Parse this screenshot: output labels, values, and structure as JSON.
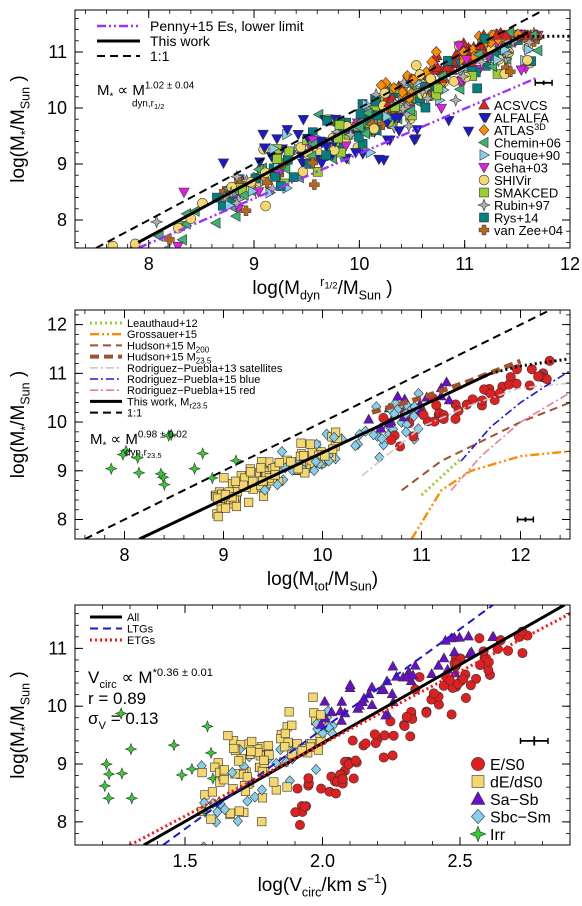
{
  "chart_data": [
    {
      "type": "scatter",
      "xlabel": "log(M_dyn^{r1/2}/M_Sun)",
      "ylabel": "log(M*/M_Sun)",
      "xlim": [
        7.3,
        12.0
      ],
      "ylim": [
        7.5,
        11.75
      ],
      "xticks": [
        "8",
        "9",
        "10",
        "11",
        "12"
      ],
      "yticks": [
        "8",
        "9",
        "10",
        "11"
      ],
      "legend_position": "top-left",
      "lines": [
        {
          "name": "Penny+15 Es, lower limit",
          "style": "dash-dot-dot",
          "color": "#9b30ff",
          "x": [
            7.9,
            11.7
          ],
          "y": [
            7.5,
            10.55
          ]
        },
        {
          "name": "This work",
          "style": "solid",
          "color": "#000000",
          "x": [
            7.9,
            11.6
          ],
          "y": [
            7.6,
            11.35
          ]
        },
        {
          "name": "1:1",
          "style": "dashed",
          "color": "#000000",
          "x": [
            7.5,
            11.75
          ],
          "y": [
            7.5,
            11.75
          ]
        },
        {
          "name": "",
          "style": "dotted",
          "color": "#000000",
          "x": [
            11.5,
            12.0
          ],
          "y": [
            11.28,
            11.28
          ]
        }
      ],
      "annotation": "M* ∝ M_dyn,r1/2^{1.02 ± 0.04}",
      "legend_symbols": [
        {
          "name": "ACSVCS",
          "shape": "triangle-up",
          "color": "#e02020"
        },
        {
          "name": "ALFALFA",
          "shape": "triangle-down",
          "color": "#1a1acc"
        },
        {
          "name": "ATLAS3D",
          "shape": "diamond",
          "color": "#ff8c00"
        },
        {
          "name": "Chemin+06",
          "shape": "triangle-left",
          "color": "#3cb371"
        },
        {
          "name": "Fouque+90",
          "shape": "triangle-right",
          "color": "#87ceeb"
        },
        {
          "name": "Geha+03",
          "shape": "triangle-down",
          "color": "#e020e0"
        },
        {
          "name": "SHIVir",
          "shape": "circle",
          "color": "#f5d76e"
        },
        {
          "name": "SMAKCED",
          "shape": "square",
          "color": "#9acd32"
        },
        {
          "name": "Rubin+97",
          "shape": "star4",
          "color": "#b0b0b0"
        },
        {
          "name": "Rys+14",
          "shape": "square",
          "color": "#008080"
        },
        {
          "name": "van Zee+04",
          "shape": "plus",
          "color": "#b5651d"
        }
      ],
      "error_bar": {
        "x": 11.75,
        "y": 10.45,
        "xerr": 0.08,
        "yerr": 0.04
      }
    },
    {
      "type": "scatter",
      "xlabel": "log(M_tot/M_Sun)",
      "ylabel": "log(M*/M_Sun)",
      "xlim": [
        7.5,
        12.5
      ],
      "ylim": [
        7.6,
        12.3
      ],
      "xticks": [
        "8",
        "9",
        "10",
        "11",
        "12"
      ],
      "yticks": [
        "8",
        "9",
        "10",
        "11",
        "12"
      ],
      "legend_position": "top-left",
      "lines": [
        {
          "name": "Leauthaud+12",
          "style": "dotted",
          "color": "#9acd32",
          "x": [
            11.0,
            11.4
          ],
          "y": [
            8.5,
            9.25
          ]
        },
        {
          "name": "Grossauer+15",
          "style": "dash-dot-dot",
          "color": "#ff8c00",
          "x": [
            10.9,
            11.2,
            11.5,
            12.0,
            12.5
          ],
          "y": [
            7.6,
            8.6,
            9.0,
            9.3,
            9.4
          ]
        },
        {
          "name": "Hudson+15 M200",
          "style": "dashed",
          "color": "#a0522d",
          "x": [
            10.8,
            11.2,
            11.6,
            12.0,
            12.5
          ],
          "y": [
            8.6,
            9.2,
            9.6,
            10.0,
            10.4
          ]
        },
        {
          "name": "Hudson+15 M23.5",
          "style": "thick-dashed",
          "color": "#a0522d",
          "x": [
            10.5,
            11.0,
            11.5,
            12.0
          ],
          "y": [
            10.2,
            10.5,
            10.85,
            11.25
          ]
        },
        {
          "name": "Rodriguez-Puebla+13 satellites",
          "style": "dash-dot",
          "color": "#c8c8c8",
          "x": [
            10.4,
            11.0,
            11.5,
            12.0,
            12.5
          ],
          "y": [
            8.9,
            9.9,
            10.35,
            10.7,
            10.8
          ]
        },
        {
          "name": "Rodriguez-Puebla+15 blue",
          "style": "dash-dot",
          "color": "#1a1acc",
          "x": [
            11.4,
            11.7,
            12.0,
            12.3,
            12.5
          ],
          "y": [
            9.2,
            9.9,
            10.4,
            10.8,
            11.05
          ]
        },
        {
          "name": "Rodriguez-Puebla+15 red",
          "style": "dash-dot",
          "color": "#e87e9c",
          "x": [
            11.3,
            11.6,
            12.0,
            12.5
          ],
          "y": [
            8.6,
            9.3,
            10.0,
            10.6
          ]
        },
        {
          "name": "This work, Mr23.5",
          "style": "solid",
          "color": "#000000",
          "x": [
            8.15,
            11.7
          ],
          "y": [
            7.6,
            11.0
          ]
        },
        {
          "name": "1:1",
          "style": "dashed",
          "color": "#000000",
          "x": [
            7.6,
            12.3
          ],
          "y": [
            7.6,
            12.3
          ]
        },
        {
          "name": "",
          "style": "dotted",
          "color": "#000000",
          "x": [
            11.7,
            12.0,
            12.5
          ],
          "y": [
            11.0,
            11.15,
            11.3
          ]
        }
      ],
      "annotation": "M* ∝ M_dyn,r23.5^{0.98 ± 0.02}",
      "error_bar": {
        "x": 12.05,
        "y": 8.0,
        "xerr": 0.08,
        "yerr": 0.05
      }
    },
    {
      "type": "scatter",
      "xlabel": "log(V_circ/km s^-1)",
      "ylabel": "log(M*/M_Sun)",
      "xlim": [
        1.1,
        2.9
      ],
      "ylim": [
        7.6,
        11.75
      ],
      "xticks": [
        "1.5",
        "2.0",
        "2.5"
      ],
      "yticks": [
        "8",
        "9",
        "10",
        "11"
      ],
      "legend_position": "top-left",
      "lines": [
        {
          "name": "All",
          "style": "solid",
          "color": "#000000",
          "x": [
            1.35,
            2.88
          ],
          "y": [
            7.6,
            11.75
          ]
        },
        {
          "name": "LTGs",
          "style": "dashed",
          "color": "#1a1acc",
          "x": [
            1.42,
            2.62
          ],
          "y": [
            7.6,
            11.75
          ]
        },
        {
          "name": "ETGs",
          "style": "dotted",
          "color": "#ff1010",
          "x": [
            1.3,
            2.9
          ],
          "y": [
            7.6,
            11.6
          ]
        }
      ],
      "annotation_lines": [
        "V_circ ∝ M*^{0.36 ± 0.01}",
        "r = 0.89",
        "σ_V = 0.13"
      ],
      "legend_symbols": [
        {
          "name": "E/S0",
          "shape": "circle",
          "color": "#e02020"
        },
        {
          "name": "dE/dS0",
          "shape": "square",
          "color": "#f5d76e"
        },
        {
          "name": "Sa−Sb",
          "shape": "triangle-up",
          "color": "#6a0dcc"
        },
        {
          "name": "Sbc−Sm",
          "shape": "diamond",
          "color": "#87ceeb"
        },
        {
          "name": "Irr",
          "shape": "star4",
          "color": "#32cd32"
        }
      ],
      "error_bar": {
        "x": 2.77,
        "y": 9.4,
        "xerr": 0.05,
        "yerr": 0.08
      }
    }
  ],
  "panel_text": {
    "p1": {
      "ylabel_main": "log(M",
      "ylabel_star": "*",
      "ylabel_rest": "/M",
      "ylabel_sub": "Sun",
      "ylabel_end": ")",
      "xlabel_main": "log(M",
      "xlabel_sup": "r",
      "xlabel_supsub": "1/2",
      "xlabel_sub": "dyn",
      "xlabel_rest": "/M",
      "xlabel_sub2": "Sun",
      "xlabel_end": " )",
      "legend": [
        "Penny+15 Es, lower limit",
        "This work",
        "1:1"
      ],
      "annot_main": "M",
      "annot_star": "*",
      "annot_prop": " ∝ M",
      "annot_sup": "1.02 ± 0.04",
      "annot_sub": "dyn,r",
      "annot_subsub": "1/2",
      "symbols": [
        "ACSVCS",
        "ALFALFA",
        "ATLAS",
        "Chemin+06",
        "Fouque+90",
        "Geha+03",
        "SHIVir",
        "SMAKCED",
        "Rubin+97",
        "Rys+14",
        "van Zee+04"
      ],
      "atlas_sup": "3D"
    },
    "p2": {
      "xlabel_main": "log(M",
      "xlabel_sub": "tot",
      "xlabel_rest": "/M",
      "xlabel_sub2": "Sun",
      "xlabel_end": ")",
      "legend": [
        "Leauthaud+12",
        "Grossauer+15",
        "Hudson+15 M",
        "Hudson+15 M",
        "Rodriguez−Puebla+13 satellites",
        "Rodriguez−Puebla+15 blue",
        "Rodriguez−Puebla+15 red",
        "This work, M",
        "1:1"
      ],
      "legend_subs": [
        "",
        "",
        "200",
        "23.5",
        "",
        "",
        "",
        "r23.5",
        ""
      ],
      "annot_main": "M",
      "annot_star": "*",
      "annot_prop": " ∝ M",
      "annot_sup": "0.98 ± 0.02",
      "annot_sub": "dyn,r",
      "annot_subsub": "23.5"
    },
    "p3": {
      "xlabel_main": "log(V",
      "xlabel_sub": "circ",
      "xlabel_rest": "/km s",
      "xlabel_sup": "−1",
      "xlabel_end": ")",
      "legend": [
        "All",
        "LTGs",
        "ETGs"
      ],
      "annot1_main": "V",
      "annot1_sub": "circ",
      "annot1_prop": " ∝ M",
      "annot1_sup": "*0.36 ± 0.01",
      "annot2": "r = 0.89",
      "annot3_main": "σ",
      "annot3_sub": "V",
      "annot3_rest": " = 0.13",
      "symbols": [
        "E/S0",
        "dE/dS0",
        "Sa−Sb",
        "Sbc−Sm",
        "Irr"
      ]
    }
  }
}
